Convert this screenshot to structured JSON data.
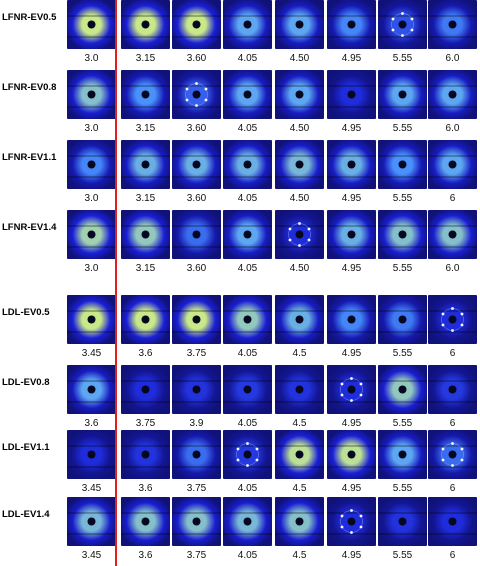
{
  "colors": {
    "divider": "#e02020",
    "detector_bg": "#10127a",
    "intensity_low": "#1a1fd8",
    "intensity_mid": "#4f9fff",
    "intensity_high": "#d7f07a",
    "beam_stop": "#060820"
  },
  "panels": [
    {
      "label": "LFNR-EV0.5",
      "values": [
        "3.0",
        "3.15",
        "3.60",
        "4.05",
        "4.50",
        "4.95",
        "5.55",
        "6.0"
      ],
      "intensity": [
        0.95,
        0.95,
        0.95,
        0.55,
        0.55,
        0.4,
        0.2,
        0.35
      ],
      "spots": [
        false,
        false,
        false,
        false,
        false,
        false,
        true,
        false
      ]
    },
    {
      "label": "LFNR-EV0.8",
      "values": [
        "3.0",
        "3.15",
        "3.60",
        "4.05",
        "4.50",
        "4.95",
        "5.55",
        "6.0"
      ],
      "intensity": [
        0.7,
        0.45,
        0.25,
        0.55,
        0.55,
        0.05,
        0.55,
        0.55
      ],
      "spots": [
        false,
        false,
        true,
        false,
        false,
        false,
        false,
        false
      ]
    },
    {
      "label": "LFNR-EV1.1",
      "values": [
        "3.0",
        "3.15",
        "3.60",
        "4.05",
        "4.50",
        "4.95",
        "5.55",
        "6"
      ],
      "intensity": [
        0.4,
        0.6,
        0.6,
        0.6,
        0.65,
        0.6,
        0.45,
        0.55
      ],
      "spots": [
        false,
        false,
        false,
        false,
        false,
        false,
        false,
        false
      ]
    },
    {
      "label": "LFNR-EV1.4",
      "values": [
        "3.0",
        "3.15",
        "3.60",
        "4.05",
        "4.50",
        "4.95",
        "5.55",
        "6.0"
      ],
      "intensity": [
        0.8,
        0.75,
        0.3,
        0.55,
        0.05,
        0.6,
        0.7,
        0.7
      ],
      "spots": [
        false,
        false,
        false,
        false,
        true,
        false,
        false,
        false
      ]
    },
    {
      "label": "LDL-EV0.5",
      "values": [
        "3.45",
        "3.6",
        "3.75",
        "4.05",
        "4.5",
        "4.95",
        "5.55",
        "6"
      ],
      "intensity": [
        0.95,
        0.95,
        0.95,
        0.75,
        0.6,
        0.4,
        0.35,
        0.05
      ],
      "spots": [
        false,
        false,
        false,
        false,
        false,
        false,
        false,
        true
      ]
    },
    {
      "label": "LDL-EV0.8",
      "values": [
        "3.6",
        "3.75",
        "3.9",
        "4.05",
        "4.5",
        "4.95",
        "5.55",
        "6"
      ],
      "intensity": [
        0.55,
        0.05,
        0.08,
        0.1,
        0.08,
        0.05,
        0.75,
        0.1
      ],
      "spots": [
        false,
        false,
        false,
        false,
        false,
        true,
        false,
        false
      ]
    },
    {
      "label": "LDL-EV1.1",
      "values": [
        "3.45",
        "3.6",
        "3.75",
        "4.05",
        "4.5",
        "4.95",
        "5.55",
        "6"
      ],
      "intensity": [
        0.05,
        0.08,
        0.3,
        0.1,
        0.9,
        0.9,
        0.55,
        0.3
      ],
      "spots": [
        false,
        false,
        false,
        true,
        false,
        false,
        false,
        true
      ]
    },
    {
      "label": "LDL-EV1.4",
      "values": [
        "3.45",
        "3.6",
        "3.75",
        "4.05",
        "4.5",
        "4.95",
        "5.55",
        "6"
      ],
      "intensity": [
        0.65,
        0.7,
        0.7,
        0.65,
        0.7,
        0.05,
        0.08,
        0.05
      ],
      "spots": [
        false,
        false,
        false,
        false,
        false,
        true,
        false,
        false
      ]
    }
  ]
}
